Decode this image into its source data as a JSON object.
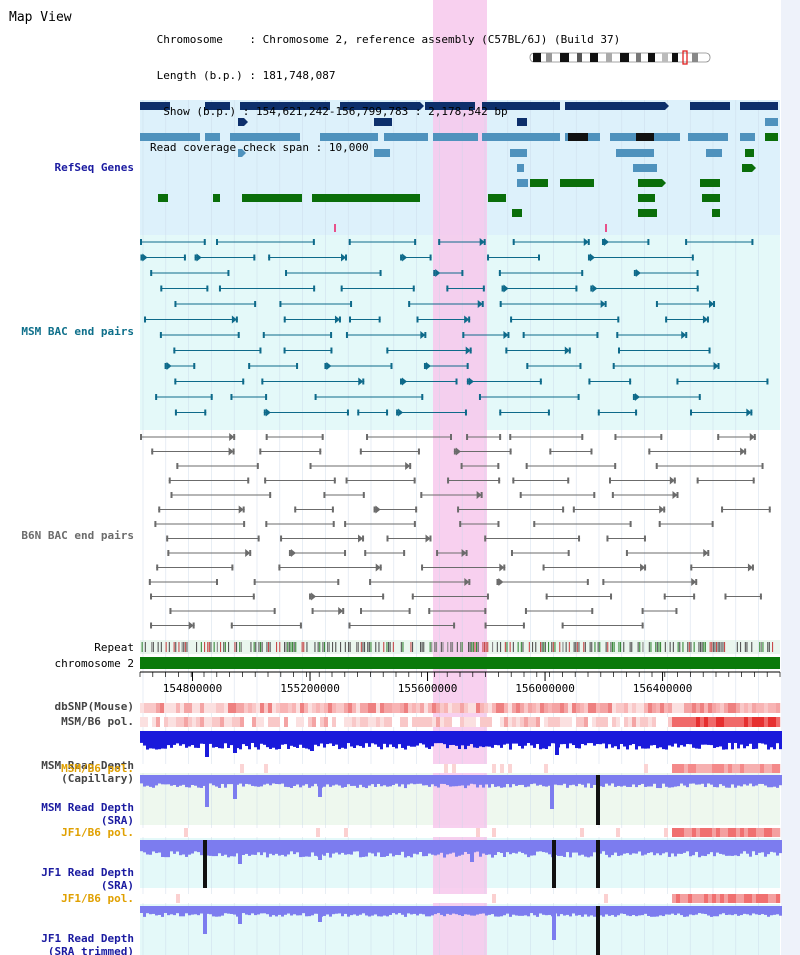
{
  "view_title": "Map View",
  "info": {
    "chromosome_label": "Chromosome",
    "chromosome_value": "Chromosome 2, reference assembly (C57BL/6J) (Build 37)",
    "length_label": "Length (b.p.)",
    "length_value": "181,748,087",
    "show_label": "Show (b.p.)",
    "show_value": "154,621,242-156,799,783 : 2,178,542 bp",
    "coverage_label": "Read coverage check span",
    "coverage_value": "10,000"
  },
  "scale": {
    "start_bp": 154621242,
    "end_bp": 156799783,
    "ticks": [
      "154800000",
      "155200000",
      "155600000",
      "156000000",
      "156400000"
    ],
    "tick_values": [
      154800000,
      155200000,
      155600000,
      156000000,
      156400000
    ]
  },
  "tracks": {
    "refseq_label": "RefSeq Genes",
    "msm_bac_label": "MSM BAC end pairs",
    "b6n_bac_label": "B6N BAC end pairs",
    "repeat_label": "Repeat",
    "chromosome_label": "chromosome 2",
    "dbsnp_label": "dbSNP(Mouse)",
    "msm_pol_label": "MSM/B6 pol.",
    "msm_cap_label_1": "MSM Read Depth",
    "msm_cap_label_2": "(Capillary)",
    "msm_pol2_label": "MSM/B6 pol.",
    "msm_sra_label_1": "MSM Read Depth",
    "msm_sra_label_2": "(SRA)",
    "jf1_pol_label": "JF1/B6 pol.",
    "jf1_sra_label_1": "JF1 Read Depth",
    "jf1_sra_label_2": "(SRA)",
    "jf1_pol2_label": "JF1/B6 pol.",
    "jf1_trim_label_1": "JF1 Read Depth",
    "jf1_trim_label_2": "(SRA trimmed)"
  },
  "colors": {
    "refseq_bg": "#ddf1fb",
    "bac_bg": "#e4f9f9",
    "highlight": "#f7c8ec",
    "dark_navy": "#0d2f6b",
    "steel_blue": "#4f92bd",
    "gene_green": "#0a6e0a",
    "msm_pair": "#0e6a8a",
    "b6n_pair": "#6b6b6b",
    "depth_blue": "#1a1adb",
    "depth_lavender": "#7c7cef",
    "label_blue": "#1a1aa0",
    "label_teal": "#0e6f8a",
    "label_gray": "#6b6b6b",
    "label_orange": "#e0a000"
  }
}
